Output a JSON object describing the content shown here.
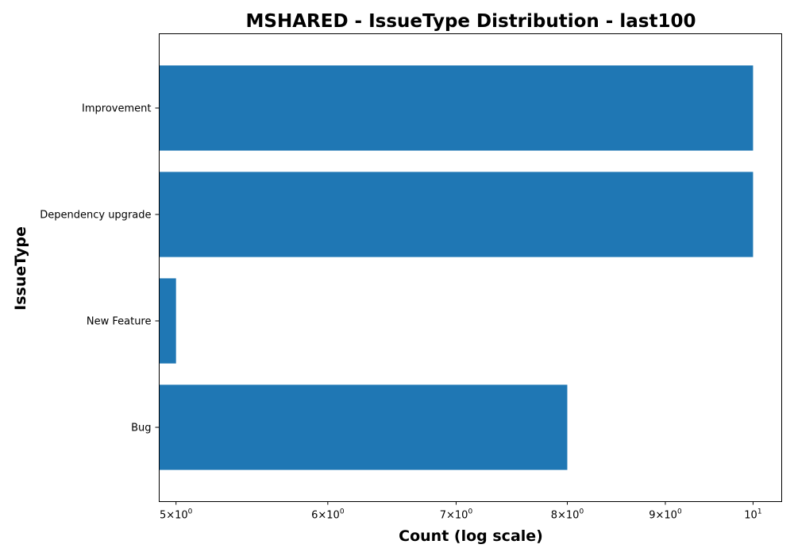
{
  "chart_data": {
    "type": "bar",
    "orientation": "horizontal",
    "title": "MSHARED - IssueType Distribution - last100",
    "xlabel": "Count (log scale)",
    "ylabel": "IssueType",
    "x_scale": "log",
    "xlim": [
      4.9,
      10.35
    ],
    "grid": false,
    "categories": [
      "Bug",
      "New Feature",
      "Dependency upgrade",
      "Improvement"
    ],
    "values": [
      8,
      5,
      10,
      10
    ],
    "bar_color": "#1f77b4",
    "x_ticks": [
      {
        "value": 5,
        "mantissa": "5",
        "base": "10",
        "exp": "0"
      },
      {
        "value": 6,
        "mantissa": "6",
        "base": "10",
        "exp": "0"
      },
      {
        "value": 7,
        "mantissa": "7",
        "base": "10",
        "exp": "0"
      },
      {
        "value": 8,
        "mantissa": "8",
        "base": "10",
        "exp": "0"
      },
      {
        "value": 9,
        "mantissa": "9",
        "base": "10",
        "exp": "0"
      },
      {
        "value": 10,
        "mantissa": "",
        "base": "10",
        "exp": "1"
      }
    ]
  }
}
